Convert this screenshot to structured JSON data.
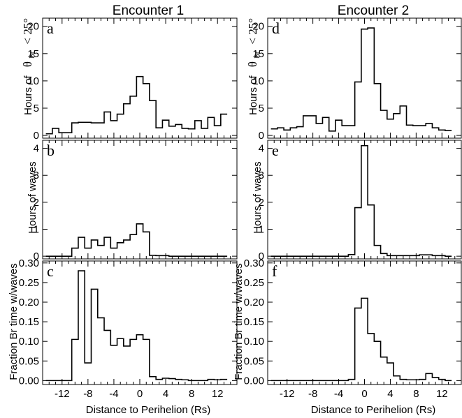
{
  "columns": [
    "Encounter 1",
    "Encounter 2"
  ],
  "xlabel": "Distance to Perihelion (Rs)",
  "ylabel_a_prefix": "Hours of",
  "ylabel_a_theta": "θ",
  "ylabel_a_sub": "Br",
  "ylabel_a_suffix": "< 25°",
  "ylabel_b": "Hours of waves",
  "ylabel_c": "Fraction Br time w/waves",
  "chart_data": [
    {
      "id": "a",
      "letter": "a",
      "type": "line",
      "step": true,
      "ylim": [
        -0.5,
        21.5
      ],
      "yticks": [
        0,
        5,
        10,
        15,
        20
      ],
      "ytick_labels": [
        "0",
        "5",
        "10",
        "15",
        "20"
      ],
      "xlim": [
        -15,
        15
      ],
      "xticks": [
        -12,
        -8,
        -4,
        0,
        4,
        8,
        12
      ],
      "xtick_labels": [
        "-12",
        "-8",
        "-4",
        "0",
        "4",
        "8",
        "12"
      ],
      "x": [
        -14,
        -13,
        -12,
        -11,
        -10,
        -9,
        -8,
        -7,
        -6,
        -5,
        -4,
        -3,
        -2,
        -1,
        0,
        1,
        2,
        3,
        4,
        5,
        6,
        7,
        8,
        9,
        10,
        11,
        12,
        13
      ],
      "values": [
        0.3,
        1.3,
        0.5,
        0.5,
        2.3,
        2.4,
        2.4,
        2.3,
        2.3,
        4.3,
        2.7,
        3.9,
        5.8,
        7.2,
        10.8,
        9.5,
        6.4,
        1.4,
        2.8,
        1.7,
        2.0,
        1.3,
        1.2,
        2.7,
        1.3,
        3.3,
        1.8,
        3.9
      ]
    },
    {
      "id": "b",
      "letter": "b",
      "type": "line",
      "step": true,
      "ylim": [
        -0.1,
        4.3
      ],
      "yticks": [
        0,
        1,
        2,
        3,
        4
      ],
      "ytick_labels": [
        "0",
        "1",
        "2",
        "3",
        "4"
      ],
      "xlim": [
        -15,
        15
      ],
      "xticks": [
        -12,
        -8,
        -4,
        0,
        4,
        8,
        12
      ],
      "xtick_labels": [
        "-12",
        "-8",
        "-4",
        "0",
        "4",
        "8",
        "12"
      ],
      "x": [
        -14,
        -13,
        -12,
        -11,
        -10,
        -9,
        -8,
        -7,
        -6,
        -5,
        -4,
        -3,
        -2,
        -1,
        0,
        1,
        2,
        3,
        4,
        5,
        6,
        7,
        8,
        9,
        10,
        11,
        12,
        13
      ],
      "values": [
        0,
        0,
        0,
        0,
        0.3,
        0.7,
        0.3,
        0.6,
        0.4,
        0.7,
        0.3,
        0.5,
        0.6,
        0.8,
        1.2,
        0.9,
        0.03,
        0.02,
        0.02,
        0,
        0,
        0,
        0,
        0,
        0,
        0,
        0,
        0
      ]
    },
    {
      "id": "c",
      "letter": "c",
      "type": "line",
      "step": true,
      "ylim": [
        -0.01,
        0.305
      ],
      "yticks": [
        0,
        0.05,
        0.1,
        0.15,
        0.2,
        0.25,
        0.3
      ],
      "ytick_labels": [
        "0.00",
        "0.05",
        "0.10",
        "0.15",
        "0.20",
        "0.25",
        "0.30"
      ],
      "xlim": [
        -15,
        15
      ],
      "xticks": [
        -12,
        -8,
        -4,
        0,
        4,
        8,
        12
      ],
      "xtick_labels": [
        "-12",
        "-8",
        "-4",
        "0",
        "4",
        "8",
        "12"
      ],
      "x": [
        -14,
        -13,
        -12,
        -11,
        -10,
        -9,
        -8,
        -7,
        -6,
        -5,
        -4,
        -3,
        -2,
        -1,
        0,
        1,
        2,
        3,
        4,
        5,
        6,
        7,
        8,
        9,
        10,
        11,
        12,
        13
      ],
      "values": [
        0,
        0,
        0,
        0,
        0.105,
        0.28,
        0.045,
        0.233,
        0.16,
        0.128,
        0.09,
        0.107,
        0.088,
        0.105,
        0.117,
        0.105,
        0.01,
        0.003,
        0.006,
        0.005,
        0.003,
        0.002,
        0,
        0,
        0,
        0.003,
        0.002,
        0.003
      ]
    },
    {
      "id": "d",
      "letter": "d",
      "type": "line",
      "step": true,
      "ylim": [
        -0.5,
        21.5
      ],
      "yticks": [
        0,
        5,
        10,
        15,
        20
      ],
      "ytick_labels": [
        "0",
        "5",
        "10",
        "15",
        "20"
      ],
      "xlim": [
        -15,
        15
      ],
      "xticks": [
        -12,
        -8,
        -4,
        0,
        4,
        8,
        12
      ],
      "xtick_labels": [
        "-12",
        "-8",
        "-4",
        "0",
        "4",
        "8",
        "12"
      ],
      "x": [
        -14,
        -13,
        -12,
        -11,
        -10,
        -9,
        -8,
        -7,
        -6,
        -5,
        -4,
        -3,
        -2,
        -1,
        0,
        1,
        2,
        3,
        4,
        5,
        6,
        7,
        8,
        9,
        10,
        11,
        12,
        13
      ],
      "values": [
        1.2,
        1.4,
        1.0,
        1.4,
        1.6,
        3.6,
        3.6,
        2.2,
        3.3,
        0.8,
        2.8,
        1.8,
        1.8,
        9.8,
        19.5,
        19.7,
        9.5,
        4.6,
        3.0,
        4.0,
        5.4,
        1.9,
        1.8,
        1.8,
        2.2,
        1.4,
        1.0,
        0.9
      ]
    },
    {
      "id": "e",
      "letter": "e",
      "type": "line",
      "step": true,
      "ylim": [
        -0.1,
        4.3
      ],
      "yticks": [
        0,
        1,
        2,
        3,
        4
      ],
      "ytick_labels": [
        "0",
        "1",
        "2",
        "3",
        "4"
      ],
      "xlim": [
        -15,
        15
      ],
      "xticks": [
        -12,
        -8,
        -4,
        0,
        4,
        8,
        12
      ],
      "xtick_labels": [
        "-12",
        "-8",
        "-4",
        "0",
        "4",
        "8",
        "12"
      ],
      "x": [
        -14,
        -13,
        -12,
        -11,
        -10,
        -9,
        -8,
        -7,
        -6,
        -5,
        -4,
        -3,
        -2,
        -1,
        0,
        1,
        2,
        3,
        4,
        5,
        6,
        7,
        8,
        9,
        10,
        11,
        12,
        13
      ],
      "values": [
        0,
        0,
        0,
        0,
        0,
        0,
        0,
        0,
        0,
        0,
        0,
        0,
        0.06,
        1.8,
        4.1,
        1.9,
        0.4,
        0.1,
        0.02,
        0.02,
        0.02,
        0.02,
        0.02,
        0.05,
        0.05,
        0.02,
        0.02,
        0
      ]
    },
    {
      "id": "f",
      "letter": "f",
      "type": "line",
      "step": true,
      "ylim": [
        -0.01,
        0.305
      ],
      "yticks": [
        0,
        0.05,
        0.1,
        0.15,
        0.2,
        0.25,
        0.3
      ],
      "ytick_labels": [
        "0.00",
        "0.05",
        "0.10",
        "0.15",
        "0.20",
        "0.25",
        "0.30"
      ],
      "xlim": [
        -15,
        15
      ],
      "xticks": [
        -12,
        -8,
        -4,
        0,
        4,
        8,
        12
      ],
      "xtick_labels": [
        "-12",
        "-8",
        "-4",
        "0",
        "4",
        "8",
        "12"
      ],
      "x": [
        -14,
        -13,
        -12,
        -11,
        -10,
        -9,
        -8,
        -7,
        -6,
        -5,
        -4,
        -3,
        -2,
        -1,
        0,
        1,
        2,
        3,
        4,
        5,
        6,
        7,
        8,
        9,
        10,
        11,
        12,
        13
      ],
      "values": [
        0,
        0,
        0,
        0,
        0,
        0,
        0,
        0,
        0,
        0,
        0,
        0,
        0.003,
        0.185,
        0.21,
        0.12,
        0.1,
        0.06,
        0.045,
        0.012,
        0.003,
        0.002,
        0.002,
        0.003,
        0.018,
        0.008,
        0.003,
        0
      ]
    }
  ]
}
